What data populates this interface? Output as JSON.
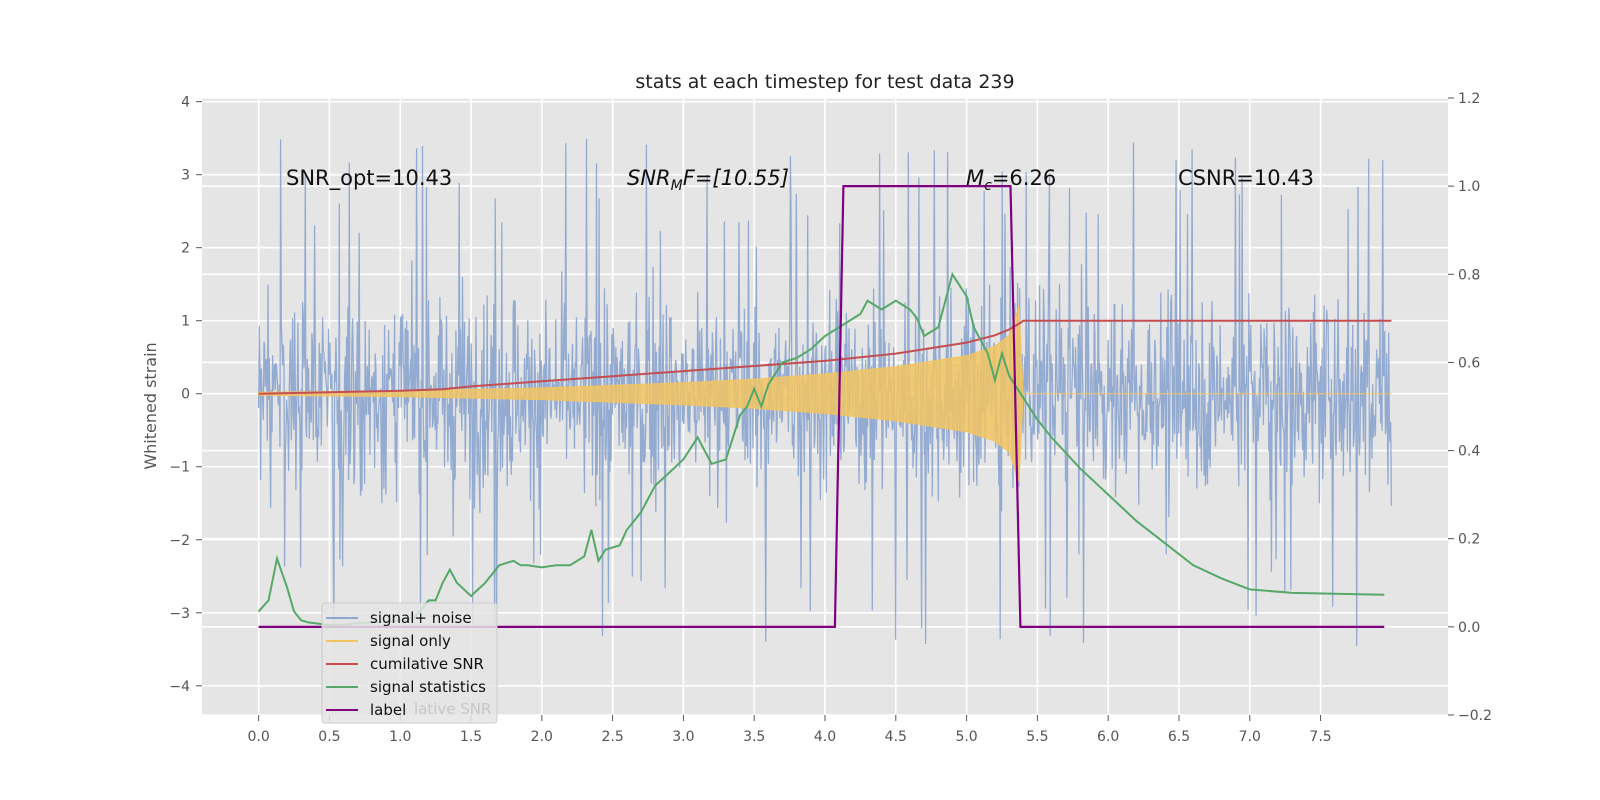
{
  "chart_data": {
    "type": "line",
    "title": "stats at each timestep for test data 239",
    "ylabel_left": "Whitened strain",
    "xlim": [
      -0.4,
      8.4
    ],
    "ylim_left": [
      -4.4,
      4.05
    ],
    "ylim_right": [
      -0.2,
      1.2
    ],
    "x_ticks": [
      "0.0",
      "0.5",
      "1.0",
      "1.5",
      "2.0",
      "2.5",
      "3.0",
      "3.5",
      "4.0",
      "4.5",
      "5.0",
      "5.5",
      "6.0",
      "6.5",
      "7.0",
      "7.5"
    ],
    "y_left_ticks": [
      "4",
      "3",
      "2",
      "1",
      "0",
      "−1",
      "−2",
      "−3",
      "−4"
    ],
    "y_right_ticks": [
      "1.2",
      "1.0",
      "0.8",
      "0.6",
      "0.4",
      "0.2",
      "0.0",
      "−0.2"
    ],
    "grid": true,
    "legend_position": "lower-left",
    "annotations": {
      "snr_opt": "SNR_opt=10.43",
      "snr_mf_base": "SNR",
      "snr_mf_sub": "M",
      "snr_mf_rest": "F=[10.55]",
      "mc_base": "M",
      "mc_sub": "c",
      "mc_rest": "=6.26",
      "csnr": "CSNR=10.43"
    },
    "legend": [
      {
        "label": "signal+ noise",
        "color": "#8fa8d0"
      },
      {
        "label": "signal only",
        "color": "#f2c462"
      },
      {
        "label": "cumilative SNR",
        "color": "#c44e52"
      },
      {
        "label": "signal statistics",
        "color": "#55a868"
      },
      {
        "label": "label",
        "color": "#800080"
      }
    ],
    "legend_overlap_text": "lative SNR",
    "series": [
      {
        "name": "signal+ noise",
        "axis": "left",
        "color": "#8fa8d0",
        "x_range": [
          0.0,
          8.0
        ],
        "typical_amplitude": 1.3,
        "max_spikes": [
          3.7,
          -4.0
        ]
      },
      {
        "name": "signal only",
        "axis": "left",
        "color": "#f2c462",
        "envelope": {
          "x": [
            0.0,
            1.0,
            2.0,
            3.0,
            3.5,
            4.0,
            4.5,
            5.0,
            5.2,
            5.3,
            5.37,
            5.4,
            8.0
          ],
          "y": [
            0.02,
            0.04,
            0.08,
            0.15,
            0.2,
            0.27,
            0.37,
            0.52,
            0.65,
            0.8,
            1.2,
            0.0,
            0.0
          ]
        }
      },
      {
        "name": "cumilative SNR",
        "axis": "left",
        "color": "#c44e52",
        "x": [
          0.0,
          0.5,
          1.0,
          1.3,
          1.5,
          2.0,
          2.5,
          3.0,
          3.5,
          4.0,
          4.5,
          5.0,
          5.2,
          5.3,
          5.38,
          5.4,
          8.0
        ],
        "y": [
          0.0,
          0.02,
          0.04,
          0.06,
          0.1,
          0.17,
          0.24,
          0.31,
          0.38,
          0.45,
          0.55,
          0.7,
          0.8,
          0.88,
          0.97,
          1.0,
          1.0
        ]
      },
      {
        "name": "signal statistics",
        "axis": "right",
        "color": "#55a868",
        "x": [
          0.0,
          0.07,
          0.13,
          0.2,
          0.25,
          0.3,
          0.35,
          0.4,
          0.5,
          0.6,
          0.7,
          0.8,
          0.9,
          1.0,
          1.1,
          1.2,
          1.25,
          1.3,
          1.35,
          1.4,
          1.5,
          1.6,
          1.7,
          1.8,
          1.85,
          1.9,
          2.0,
          2.1,
          2.2,
          2.3,
          2.35,
          2.4,
          2.45,
          2.5,
          2.55,
          2.6,
          2.65,
          2.7,
          2.8,
          2.9,
          3.0,
          3.05,
          3.1,
          3.15,
          3.2,
          3.3,
          3.4,
          3.45,
          3.5,
          3.55,
          3.6,
          3.7,
          3.8,
          3.9,
          4.0,
          4.05,
          4.1,
          4.2,
          4.25,
          4.3,
          4.35,
          4.4,
          4.45,
          4.5,
          4.6,
          4.65,
          4.7,
          4.75,
          4.8,
          4.85,
          4.9,
          5.0,
          5.05,
          5.1,
          5.15,
          5.2,
          5.25,
          5.3,
          5.4,
          5.5,
          5.6,
          5.8,
          6.0,
          6.2,
          6.4,
          6.6,
          6.8,
          7.0,
          7.3,
          7.6,
          7.95
        ],
        "y": [
          0.035,
          0.06,
          0.155,
          0.09,
          0.035,
          0.015,
          0.01,
          0.008,
          0.004,
          0.005,
          0.008,
          0.01,
          0.012,
          0.015,
          0.02,
          0.06,
          0.06,
          0.1,
          0.13,
          0.1,
          0.07,
          0.1,
          0.14,
          0.15,
          0.14,
          0.14,
          0.135,
          0.14,
          0.14,
          0.16,
          0.22,
          0.15,
          0.175,
          0.18,
          0.185,
          0.22,
          0.24,
          0.26,
          0.32,
          0.35,
          0.38,
          0.405,
          0.43,
          0.4,
          0.37,
          0.38,
          0.48,
          0.5,
          0.54,
          0.5,
          0.55,
          0.6,
          0.61,
          0.63,
          0.66,
          0.67,
          0.68,
          0.7,
          0.71,
          0.74,
          0.73,
          0.72,
          0.73,
          0.74,
          0.72,
          0.7,
          0.66,
          0.67,
          0.68,
          0.74,
          0.8,
          0.75,
          0.68,
          0.65,
          0.62,
          0.56,
          0.62,
          0.57,
          0.52,
          0.47,
          0.43,
          0.36,
          0.3,
          0.24,
          0.19,
          0.14,
          0.11,
          0.085,
          0.077,
          0.075,
          0.073
        ]
      },
      {
        "name": "label",
        "axis": "right",
        "color": "#800080",
        "x": [
          0.0,
          4.07,
          4.13,
          5.31,
          5.38,
          7.95
        ],
        "y": [
          0.0,
          0.0,
          1.0,
          1.0,
          0.0,
          0.0
        ]
      }
    ]
  }
}
